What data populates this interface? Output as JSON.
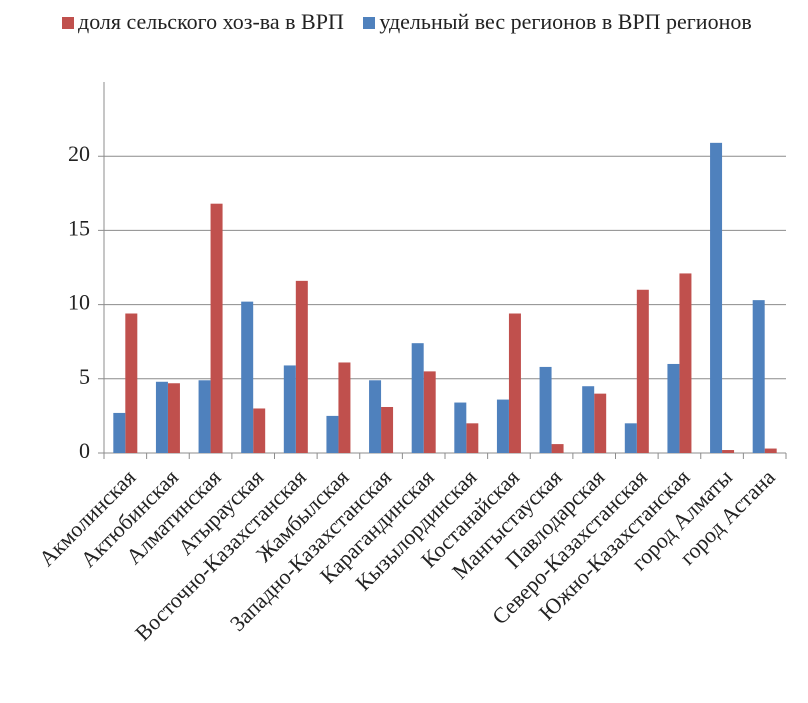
{
  "chart_data": {
    "type": "bar",
    "categories": [
      "Акмолинская",
      "Актюбинская",
      "Алматинская",
      "Атырауская",
      "Восточно-Казахстанская",
      "Жамбылская",
      "Западно-Казахстанская",
      "Карагандинская",
      "Кызылординская",
      "Костанайская",
      "Мангыстауская",
      "Павлодарская",
      "Северо-Казахстанская",
      "Южно-Казахстанская",
      "город Алматы",
      "город Астана"
    ],
    "series": [
      {
        "name": "доля сельского хоз-ва в ВРП",
        "color": "#c0504d",
        "values": [
          9.4,
          4.7,
          16.8,
          3.0,
          11.6,
          6.1,
          3.1,
          5.5,
          2.0,
          9.4,
          0.6,
          4.0,
          11.0,
          12.1,
          0.2,
          0.3
        ]
      },
      {
        "name": "удельный вес регионов в ВРП регионов",
        "color": "#4f81bd",
        "values": [
          2.7,
          4.8,
          4.9,
          10.2,
          5.9,
          2.5,
          4.9,
          7.4,
          3.4,
          3.6,
          5.8,
          4.5,
          2.0,
          6.0,
          20.9,
          10.3
        ]
      }
    ],
    "ylim": [
      0,
      25
    ],
    "yticks": [
      0,
      5,
      10,
      15,
      20
    ],
    "grid": true,
    "legend": "top"
  }
}
